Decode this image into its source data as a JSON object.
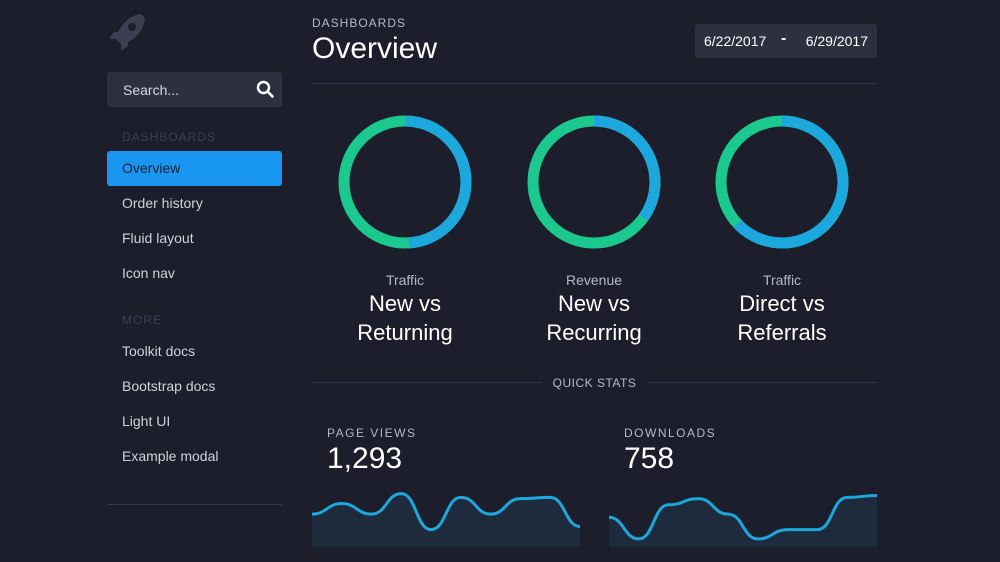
{
  "sidebar": {
    "logo_icon": "rocket-icon",
    "search": {
      "placeholder": "Search...",
      "icon": "search-icon"
    },
    "sections": [
      {
        "header": "DASHBOARDS",
        "items": [
          {
            "label": "Overview",
            "active": true
          },
          {
            "label": "Order history"
          },
          {
            "label": "Fluid layout"
          },
          {
            "label": "Icon nav"
          }
        ]
      },
      {
        "header": "MORE",
        "items": [
          {
            "label": "Toolkit docs"
          },
          {
            "label": "Bootstrap docs"
          },
          {
            "label": "Light UI"
          },
          {
            "label": "Example modal"
          }
        ]
      }
    ]
  },
  "header": {
    "eyebrow": "DASHBOARDS",
    "title": "Overview",
    "date_start": "6/22/2017",
    "date_separator": "-",
    "date_end": "6/29/2017"
  },
  "donuts": [
    {
      "subtitle": "Traffic",
      "title_line1": "New vs",
      "title_line2": "Returning",
      "blue_fraction": 0.49
    },
    {
      "subtitle": "Revenue",
      "title_line1": "New vs",
      "title_line2": "Recurring",
      "blue_fraction": 0.35
    },
    {
      "subtitle": "Traffic",
      "title_line1": "Direct vs",
      "title_line2": "Referrals",
      "blue_fraction": 0.63
    }
  ],
  "quick_stats": {
    "label": "QUICK STATS",
    "items": [
      {
        "label": "PAGE VIEWS",
        "value": "1,293",
        "trend": [
          0.45,
          0.62,
          0.45,
          0.78,
          0.2,
          0.72,
          0.45,
          0.7,
          0.72,
          0.25
        ]
      },
      {
        "label": "DOWNLOADS",
        "value": "758",
        "trend": [
          0.4,
          0.05,
          0.6,
          0.7,
          0.45,
          0.05,
          0.2,
          0.2,
          0.72,
          0.75
        ]
      }
    ]
  },
  "colors": {
    "accent_blue": "#1997f0",
    "donut_blue": "#1ca8dd",
    "donut_green": "#1bc98e",
    "background": "#1c1e2b",
    "panel": "#2d3040"
  }
}
